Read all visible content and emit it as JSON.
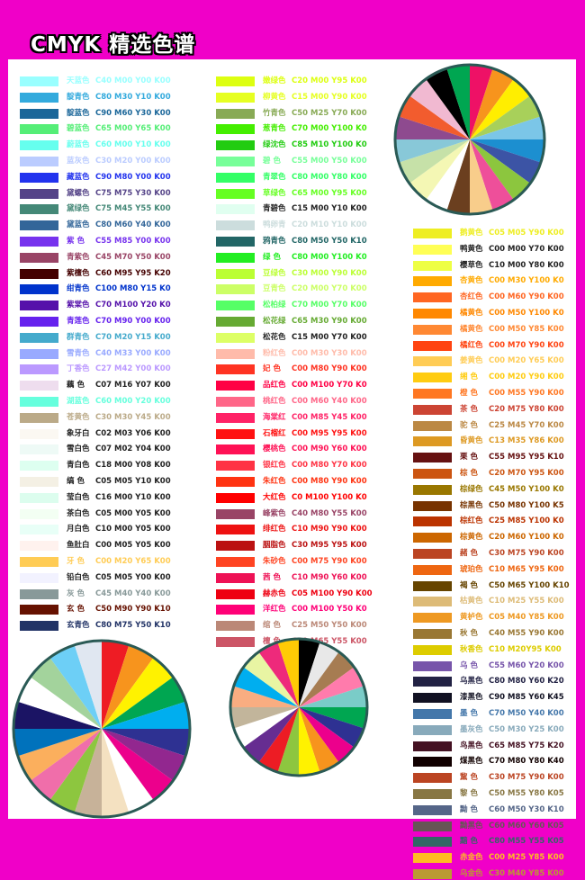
{
  "title": "CMYK 精选色谱",
  "columns": [
    {
      "name": "left",
      "rows": [
        {
          "name": "天蓝色",
          "code": "C40 M00 Y00 K00",
          "color": "#99ffff"
        },
        {
          "name": "靛青色",
          "code": "C80 M30 Y10 K00",
          "color": "#33aadd"
        },
        {
          "name": "靛蓝色",
          "code": "C90 M60 Y30 K00",
          "color": "#1a6699"
        },
        {
          "name": "碧蓝色",
          "code": "C65 M00 Y65 K00",
          "color": "#55ee77"
        },
        {
          "name": "蔚蓝色",
          "code": "C60 M00 Y10 K00",
          "color": "#66ffee"
        },
        {
          "name": "蓝灰色",
          "code": "C30 M20 Y00 K00",
          "color": "#bbccff"
        },
        {
          "name": "藏蓝色",
          "code": "C90 M80 Y00 K00",
          "color": "#2233ee"
        },
        {
          "name": "黛螺色",
          "code": "C75 M75 Y30 K00",
          "color": "#554488"
        },
        {
          "name": "黛绿色",
          "code": "C75 M45 Y55 K00",
          "color": "#448877"
        },
        {
          "name": "黛蓝色",
          "code": "C80 M60 Y40 K00",
          "color": "#336699"
        },
        {
          "name": "紫 色",
          "code": "C55 M85 Y00 K00",
          "color": "#7733ee"
        },
        {
          "name": "青紫色",
          "code": "C45 M70 Y50 K00",
          "color": "#994466"
        },
        {
          "name": "紫檀色",
          "code": "C60 M95 Y95 K20",
          "color": "#440000"
        },
        {
          "name": "绀青色",
          "code": "C100 M80 Y15 K0",
          "color": "#0033cc"
        },
        {
          "name": "紫棠色",
          "code": "C70 M100 Y20 K0",
          "color": "#5511aa"
        },
        {
          "name": "青莲色",
          "code": "C70 M90 Y00 K00",
          "color": "#6622ee"
        },
        {
          "name": "群青色",
          "code": "C70 M20 Y15 K00",
          "color": "#44aacc"
        },
        {
          "name": "雪青色",
          "code": "C40 M33 Y00 K00",
          "color": "#99aaff"
        },
        {
          "name": "丁香色",
          "code": "C27 M42 Y00 K00",
          "color": "#bb99ff"
        },
        {
          "name": "藕 色",
          "code": "C07 M16 Y07 K00",
          "color": "#eeddee"
        },
        {
          "name": "湖蓝色",
          "code": "C60 M00 Y20 K00",
          "color": "#66ffdd"
        },
        {
          "name": "苍黄色",
          "code": "C30 M30 Y45 K00",
          "color": "#bbaa88"
        },
        {
          "name": "象牙白",
          "code": "C02 M03 Y06 K00",
          "color": "#fbf8f2"
        },
        {
          "name": "雪白色",
          "code": "C07 M02 Y04 K00",
          "color": "#eefaf6"
        },
        {
          "name": "青白色",
          "code": "C18 M00 Y08 K00",
          "color": "#ddfff0"
        },
        {
          "name": "缟 色",
          "code": "C05 M05 Y10 K00",
          "color": "#f4f0e4"
        },
        {
          "name": "莹白色",
          "code": "C16 M00 Y10 K00",
          "color": "#dcfdee"
        },
        {
          "name": "茶白色",
          "code": "C05 M00 Y05 K00",
          "color": "#f3fff3"
        },
        {
          "name": "月白色",
          "code": "C10 M00 Y05 K00",
          "color": "#e8fff7"
        },
        {
          "name": "鱼肚白",
          "code": "C00 M05 Y05 K00",
          "color": "#fff2ee"
        },
        {
          "name": "牙 色",
          "code": "C00 M20 Y65 K00",
          "color": "#ffcc55"
        },
        {
          "name": "铅白色",
          "code": "C05 M05 Y00 K00",
          "color": "#f2f2ff"
        },
        {
          "name": "灰 色",
          "code": "C45 M40 Y40 K00",
          "color": "#889999"
        },
        {
          "name": "玄 色",
          "code": "C50 M90 Y90 K10",
          "color": "#661100"
        },
        {
          "name": "玄青色",
          "code": "C80 M75 Y50 K10",
          "color": "#223366"
        }
      ]
    },
    {
      "name": "middle",
      "rows": [
        {
          "name": "嫩绿色",
          "code": "C20 M00 Y95 K00",
          "color": "#ddff11"
        },
        {
          "name": "柳黄色",
          "code": "C15 M00 Y90 K00",
          "color": "#e6ff22"
        },
        {
          "name": "竹青色",
          "code": "C50 M25 Y70 K00",
          "color": "#88aa55"
        },
        {
          "name": "葱青色",
          "code": "C70 M00 Y100 K0",
          "color": "#44ee00"
        },
        {
          "name": "绿沈色",
          "code": "C85 M10 Y100 K0",
          "color": "#22cc11"
        },
        {
          "name": "碧 色",
          "code": "C55 M00 Y50 K00",
          "color": "#77ff99"
        },
        {
          "name": "青翠色",
          "code": "C80 M00 Y80 K00",
          "color": "#33ff66"
        },
        {
          "name": "草绿色",
          "code": "C65 M00 Y95 K00",
          "color": "#66ff22"
        },
        {
          "name": "青碧色",
          "code": "C15 M00 Y10 K00",
          "color": "#e0fff0"
        },
        {
          "name": "鸭卵青",
          "code": "C20 M10 Y10 K00",
          "color": "#ccdddd"
        },
        {
          "name": "鸦青色",
          "code": "C80 M50 Y50 K10",
          "color": "#226666"
        },
        {
          "name": "绿 色",
          "code": "C80 M00 Y100 K0",
          "color": "#22ee22"
        },
        {
          "name": "豆绿色",
          "code": "C30 M00 Y90 K00",
          "color": "#bbff33"
        },
        {
          "name": "豆青色",
          "code": "C20 M00 Y70 K00",
          "color": "#ccff66"
        },
        {
          "name": "松柏绿",
          "code": "C70 M00 Y70 K00",
          "color": "#55ff66"
        },
        {
          "name": "松花绿",
          "code": "C65 M30 Y90 K00",
          "color": "#66aa33"
        },
        {
          "name": "松花色",
          "code": "C15 M00 Y70 K00",
          "color": "#ddff66"
        },
        {
          "name": "粉红色",
          "code": "C00 M30 Y30 K00",
          "color": "#ffbbaa"
        },
        {
          "name": "妃 色",
          "code": "C00 M80 Y90 K00",
          "color": "#ff3322"
        },
        {
          "name": "品红色",
          "code": "C00 M100 Y70 K0",
          "color": "#ff0044"
        },
        {
          "name": "桃红色",
          "code": "C00 M60 Y40 K00",
          "color": "#ff6688"
        },
        {
          "name": "海棠红",
          "code": "C00 M85 Y45 K00",
          "color": "#ff2266"
        },
        {
          "name": "石榴红",
          "code": "C00 M95 Y95 K00",
          "color": "#ff1111"
        },
        {
          "name": "樱桃色",
          "code": "C00 M90 Y60 K00",
          "color": "#ff1155"
        },
        {
          "name": "银红色",
          "code": "C00 M80 Y70 K00",
          "color": "#ff3344"
        },
        {
          "name": "朱红色",
          "code": "C00 M80 Y90 K00",
          "color": "#ff3311"
        },
        {
          "name": "大红色",
          "code": "C0 M100 Y100 K0",
          "color": "#ff0000"
        },
        {
          "name": "峰紫色",
          "code": "C40 M80 Y55 K00",
          "color": "#994466"
        },
        {
          "name": "绯红色",
          "code": "C10 M90 Y90 K00",
          "color": "#ee1111"
        },
        {
          "name": "胭脂色",
          "code": "C30 M95 Y95 K00",
          "color": "#bb1111"
        },
        {
          "name": "朱砂色",
          "code": "C00 M75 Y90 K00",
          "color": "#ff4422"
        },
        {
          "name": "茜 色",
          "code": "C10 M90 Y60 K00",
          "color": "#ee1155"
        },
        {
          "name": "赫赤色",
          "code": "C05 M100 Y90 K00",
          "color": "#ee0011"
        },
        {
          "name": "洋红色",
          "code": "C00 M100 Y50 K0",
          "color": "#ff0077"
        },
        {
          "name": "绾 色",
          "code": "C25 M50 Y50 K00",
          "color": "#bb8877"
        },
        {
          "name": "檀 色",
          "code": "C20 M65 Y55 K00",
          "color": "#cc5566"
        }
      ]
    },
    {
      "name": "right",
      "rows": [
        {
          "name": "鹅黄色",
          "code": "C05 M05 Y90 K00",
          "color": "#eeee22"
        },
        {
          "name": "鸭黄色",
          "code": "C00 M00 Y70 K00",
          "color": "#ffff55"
        },
        {
          "name": "樱草色",
          "code": "C10 M00 Y80 K00",
          "color": "#eeff44"
        },
        {
          "name": "杏黄色",
          "code": "C00 M30 Y100 K0",
          "color": "#ffaa00"
        },
        {
          "name": "杏红色",
          "code": "C00 M60 Y90 K00",
          "color": "#ff6622"
        },
        {
          "name": "橘黄色",
          "code": "C00 M50 Y100 K0",
          "color": "#ff8800"
        },
        {
          "name": "橘黄色",
          "code": "C00 M50 Y85 K00",
          "color": "#ff8833"
        },
        {
          "name": "橘红色",
          "code": "C00 M70 Y90 K00",
          "color": "#ff4411"
        },
        {
          "name": "姜黄色",
          "code": "C00 M20 Y65 K00",
          "color": "#ffcc55"
        },
        {
          "name": "缃 色",
          "code": "C00 M20 Y90 K00",
          "color": "#ffcc11"
        },
        {
          "name": "橙 色",
          "code": "C00 M55 Y90 K00",
          "color": "#ff7722"
        },
        {
          "name": "茶 色",
          "code": "C20 M75 Y80 K00",
          "color": "#cc4433"
        },
        {
          "name": "驼 色",
          "code": "C25 M45 Y70 K00",
          "color": "#bb8844"
        },
        {
          "name": "昏黄色",
          "code": "C13 M35 Y86 K00",
          "color": "#dd9922"
        },
        {
          "name": "栗 色",
          "code": "C55 M95 Y95 K10",
          "color": "#661111"
        },
        {
          "name": "棕 色",
          "code": "C20 M70 Y95 K00",
          "color": "#cc5511"
        },
        {
          "name": "棕绿色",
          "code": "C45 M50 Y100 K0",
          "color": "#997700"
        },
        {
          "name": "棕黑色",
          "code": "C50 M80 Y100 K5",
          "color": "#773300"
        },
        {
          "name": "棕红色",
          "code": "C25 M85 Y100 K0",
          "color": "#bb3300"
        },
        {
          "name": "棕黄色",
          "code": "C20 M60 Y100 K0",
          "color": "#cc6600"
        },
        {
          "name": "赭 色",
          "code": "C30 M75 Y90 K00",
          "color": "#bb4422"
        },
        {
          "name": "琥珀色",
          "code": "C10 M65 Y95 K00",
          "color": "#ee6611"
        },
        {
          "name": "褐 色",
          "code": "C50 M65 Y100 K10",
          "color": "#664400"
        },
        {
          "name": "枯黄色",
          "code": "C10 M25 Y55 K00",
          "color": "#ddbb77"
        },
        {
          "name": "黄栌色",
          "code": "C05 M40 Y85 K00",
          "color": "#ee9922"
        },
        {
          "name": "秋 色",
          "code": "C40 M55 Y90 K00",
          "color": "#997733"
        },
        {
          "name": "秋香色",
          "code": "C10 M20Y95 K00",
          "color": "#ddcc00"
        },
        {
          "name": "乌 色",
          "code": "C55 M60 Y20 K00",
          "color": "#7755aa"
        },
        {
          "name": "乌黑色",
          "code": "C80 M80 Y60 K20",
          "color": "#222244"
        },
        {
          "name": "漆黑色",
          "code": "C90 M85 Y60 K45",
          "color": "#111122"
        },
        {
          "name": "墨 色",
          "code": "C70 M50 Y40 K00",
          "color": "#4477aa"
        },
        {
          "name": "墨灰色",
          "code": "C50 M30 Y25 K00",
          "color": "#88aabb"
        },
        {
          "name": "鸟黑色",
          "code": "C65 M85 Y75 K20",
          "color": "#441122"
        },
        {
          "name": "煤黑色",
          "code": "C70 M80 Y80 K40",
          "color": "#110000"
        },
        {
          "name": "黧 色",
          "code": "C30 M75 Y90 K00",
          "color": "#bb4422"
        },
        {
          "name": "黎 色",
          "code": "C50 M55 Y80 K05",
          "color": "#887744"
        },
        {
          "name": "黝 色",
          "code": "C60 M50 Y30 K10",
          "color": "#556688"
        },
        {
          "name": "黝黑色",
          "code": "C60 M60 Y60 K05",
          "color": "#665555"
        },
        {
          "name": "黯 色",
          "code": "C80 M55 Y55 K05",
          "color": "#336666"
        },
        {
          "name": "赤金色",
          "code": "C00 M25 Y85 K00",
          "color": "#ffbb22"
        },
        {
          "name": "乌金色",
          "code": "C30 M40 Y85 K00",
          "color": "#bb9933"
        }
      ]
    }
  ],
  "wheels": [
    {
      "name": "top-right",
      "colors": [
        "#ee1166",
        "#f7941d",
        "#ffee00",
        "#a8d05a",
        "#7bc6e8",
        "#1c8fd0",
        "#3c54a5",
        "#8cc63e",
        "#ee4f9a",
        "#f8cd8b",
        "#6b3f1f",
        "#ffffff",
        "#f4f7b4",
        "#c6e1a8",
        "#88c8d8",
        "#8e4a8f",
        "#f25c2e",
        "#f1b9d1",
        "#000000",
        "#00a651"
      ]
    },
    {
      "name": "bottom-left",
      "colors": [
        "#ee1c24",
        "#f7941d",
        "#fff200",
        "#00a651",
        "#00aeef",
        "#2e3192",
        "#92278f",
        "#ec008c",
        "#ffffff",
        "#f4e1c1",
        "#c7b299",
        "#8dc63f",
        "#f06eaa",
        "#fbaf5d",
        "#0072bc",
        "#1b1464",
        "#ffffff",
        "#a3d39c",
        "#6dcff6",
        "#e0e7f1"
      ]
    },
    {
      "name": "bottom-middle",
      "colors": [
        "#000000",
        "#e8e8e8",
        "#a67c52",
        "#ff7bac",
        "#7accc8",
        "#00a651",
        "#2e3192",
        "#ec008c",
        "#f7941d",
        "#fff200",
        "#8dc63f",
        "#ed1c24",
        "#662d91",
        "#ffffff",
        "#c2b59b",
        "#f9ad81",
        "#00aeef",
        "#e8f5a3",
        "#ee2a7b",
        "#ffcb05"
      ]
    }
  ]
}
